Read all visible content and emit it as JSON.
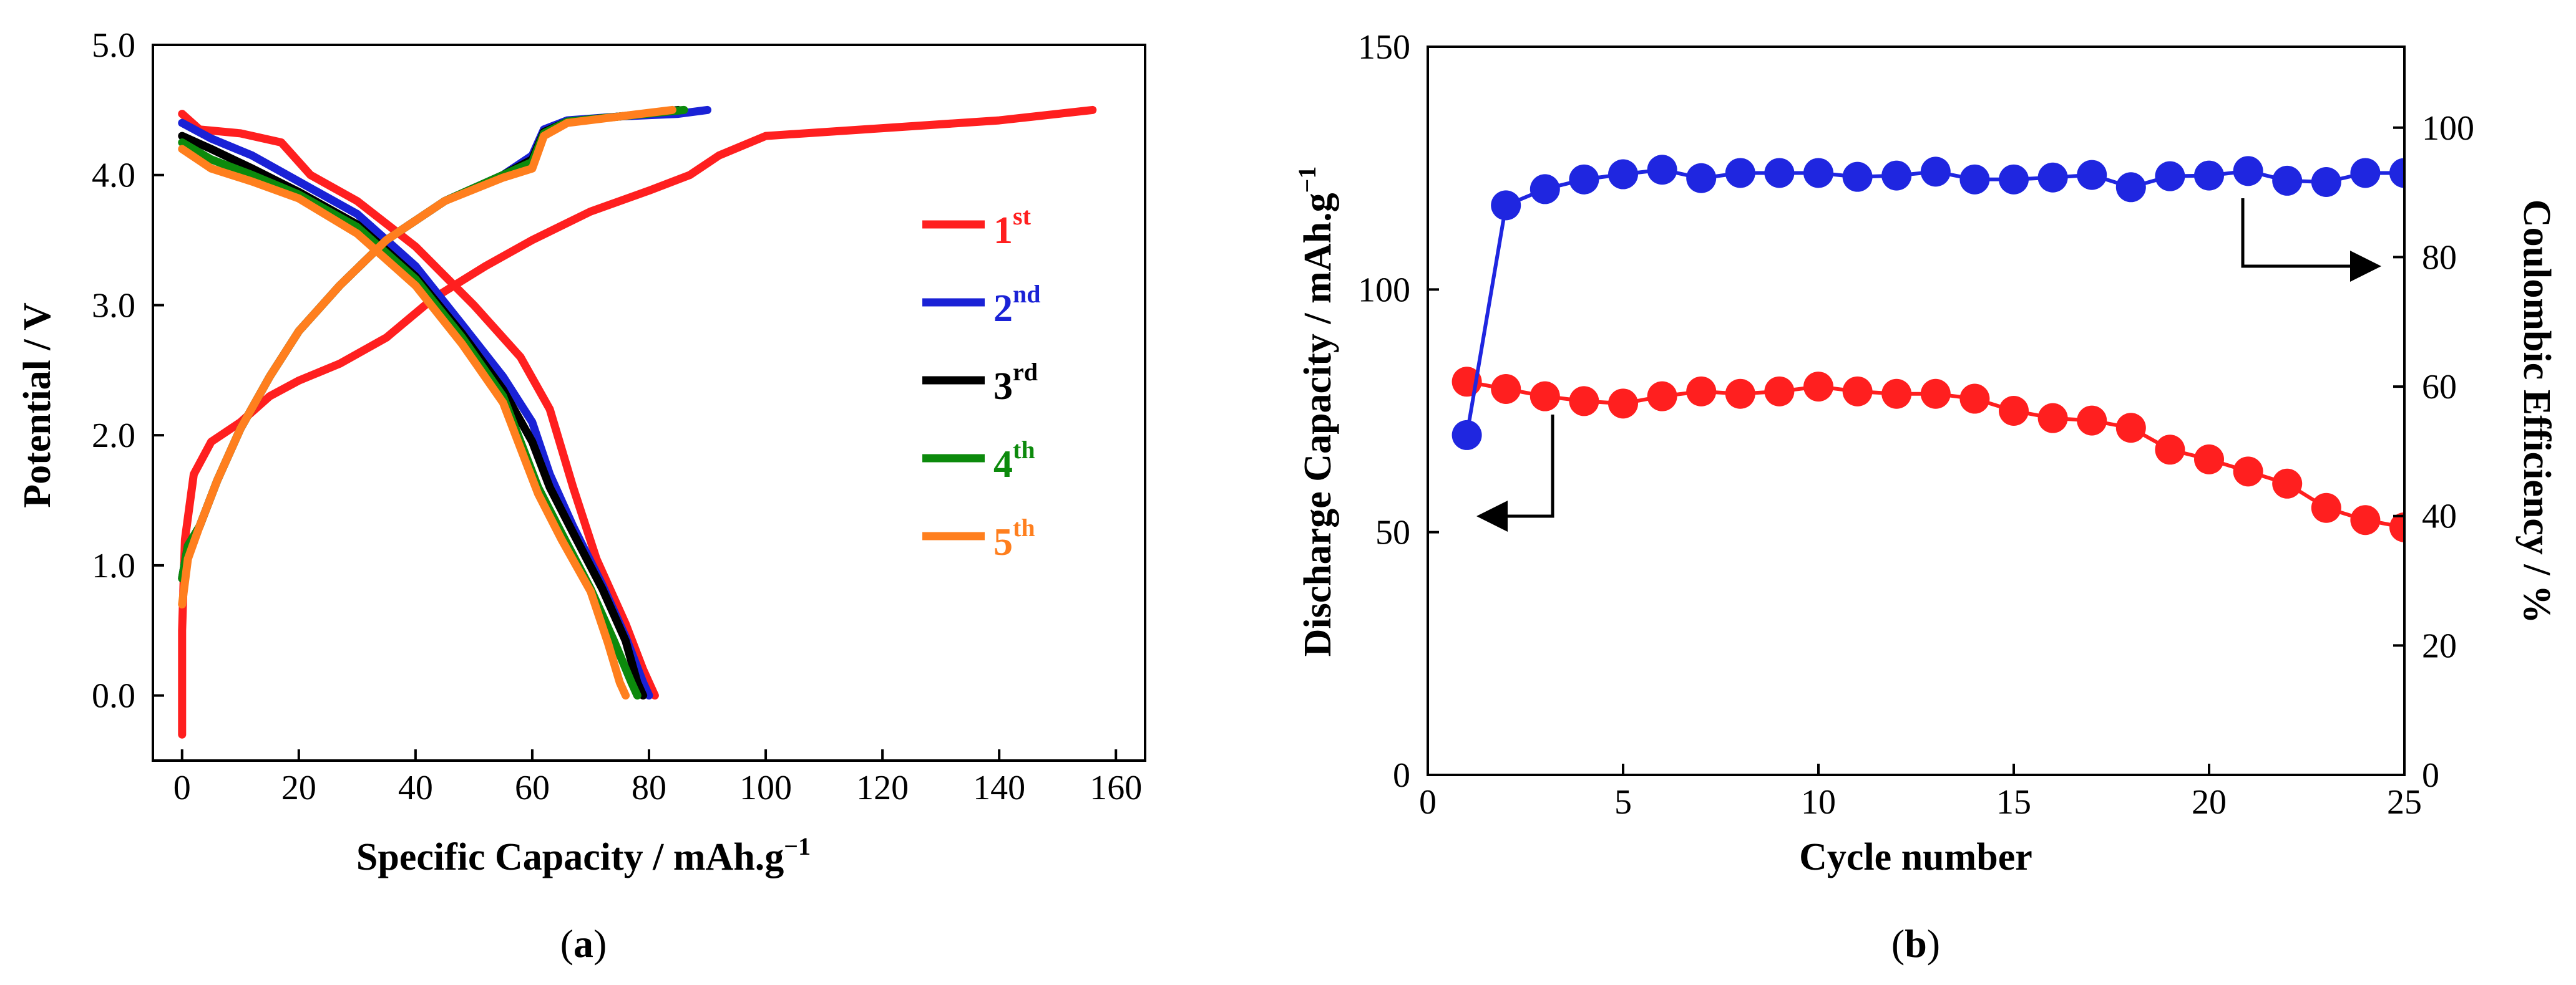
{
  "chart_data": [
    {
      "panel": "a",
      "type": "line",
      "caption": {
        "open": "(",
        "letter": "a",
        "close": ")"
      },
      "xlabel": {
        "main": "Specific Capacity / mAh.g",
        "sup": "−1"
      },
      "ylabel": "Potential / V",
      "xlim": [
        -5,
        165
      ],
      "ylim": [
        -0.5,
        5.0
      ],
      "xticks": [
        "0",
        "20",
        "40",
        "60",
        "80",
        "100",
        "120",
        "140",
        "160"
      ],
      "yticks": [
        "0.0",
        "1.0",
        "2.0",
        "3.0",
        "4.0",
        "5.0"
      ],
      "legend_position": "right",
      "series": [
        {
          "name": "1",
          "sup": "st",
          "color": "#ff1f1f",
          "charge": [
            [
              0,
              -0.3
            ],
            [
              0,
              0.5
            ],
            [
              0.5,
              1.2
            ],
            [
              2,
              1.7
            ],
            [
              5,
              1.95
            ],
            [
              10,
              2.1
            ],
            [
              15,
              2.3
            ],
            [
              20,
              2.42
            ],
            [
              27,
              2.55
            ],
            [
              35,
              2.75
            ],
            [
              43,
              3.05
            ],
            [
              52,
              3.3
            ],
            [
              60,
              3.5
            ],
            [
              70,
              3.72
            ],
            [
              80,
              3.88
            ],
            [
              87,
              4.0
            ],
            [
              92,
              4.15
            ],
            [
              100,
              4.3
            ],
            [
              120,
              4.36
            ],
            [
              140,
              4.42
            ],
            [
              156,
              4.5
            ]
          ],
          "discharge": [
            [
              0,
              4.47
            ],
            [
              3,
              4.35
            ],
            [
              10,
              4.32
            ],
            [
              17,
              4.25
            ],
            [
              22,
              4.0
            ],
            [
              30,
              3.8
            ],
            [
              40,
              3.45
            ],
            [
              50,
              3.0
            ],
            [
              58,
              2.6
            ],
            [
              63,
              2.2
            ],
            [
              67,
              1.6
            ],
            [
              71,
              1.05
            ],
            [
              76,
              0.55
            ],
            [
              79,
              0.2
            ],
            [
              81,
              0.0
            ]
          ]
        },
        {
          "name": "2",
          "sup": "nd",
          "color": "#1a22d6",
          "charge": [
            [
              0,
              0.9
            ],
            [
              1,
              1.15
            ],
            [
              3,
              1.3
            ],
            [
              6,
              1.65
            ],
            [
              10,
              2.05
            ],
            [
              15,
              2.45
            ],
            [
              20,
              2.8
            ],
            [
              27,
              3.15
            ],
            [
              35,
              3.5
            ],
            [
              45,
              3.8
            ],
            [
              55,
              4.0
            ],
            [
              60,
              4.15
            ],
            [
              62,
              4.35
            ],
            [
              66,
              4.42
            ],
            [
              75,
              4.45
            ],
            [
              85,
              4.47
            ],
            [
              90,
              4.5
            ]
          ],
          "discharge": [
            [
              0,
              4.4
            ],
            [
              5,
              4.28
            ],
            [
              12,
              4.15
            ],
            [
              20,
              3.95
            ],
            [
              30,
              3.7
            ],
            [
              40,
              3.3
            ],
            [
              48,
              2.85
            ],
            [
              55,
              2.45
            ],
            [
              60,
              2.1
            ],
            [
              63,
              1.7
            ],
            [
              67,
              1.3
            ],
            [
              72,
              0.85
            ],
            [
              76,
              0.45
            ],
            [
              79,
              0.1
            ],
            [
              80,
              0.0
            ]
          ]
        },
        {
          "name": "3",
          "sup": "rd",
          "color": "#000000",
          "charge": [
            [
              0,
              0.9
            ],
            [
              1,
              1.15
            ],
            [
              3,
              1.3
            ],
            [
              6,
              1.65
            ],
            [
              10,
              2.05
            ],
            [
              15,
              2.45
            ],
            [
              20,
              2.8
            ],
            [
              27,
              3.15
            ],
            [
              35,
              3.5
            ],
            [
              45,
              3.8
            ],
            [
              55,
              4.0
            ],
            [
              60,
              4.12
            ],
            [
              62,
              4.33
            ],
            [
              66,
              4.41
            ],
            [
              75,
              4.45
            ],
            [
              85,
              4.5
            ]
          ],
          "discharge": [
            [
              0,
              4.3
            ],
            [
              5,
              4.2
            ],
            [
              12,
              4.05
            ],
            [
              20,
              3.87
            ],
            [
              30,
              3.62
            ],
            [
              40,
              3.22
            ],
            [
              48,
              2.78
            ],
            [
              55,
              2.35
            ],
            [
              60,
              1.95
            ],
            [
              63,
              1.6
            ],
            [
              67,
              1.25
            ],
            [
              72,
              0.82
            ],
            [
              76,
              0.42
            ],
            [
              78,
              0.1
            ],
            [
              79,
              0.0
            ]
          ]
        },
        {
          "name": "4",
          "sup": "th",
          "color": "#0c8a0c",
          "charge": [
            [
              0,
              0.9
            ],
            [
              1,
              1.15
            ],
            [
              3,
              1.3
            ],
            [
              6,
              1.65
            ],
            [
              10,
              2.05
            ],
            [
              15,
              2.45
            ],
            [
              20,
              2.8
            ],
            [
              27,
              3.15
            ],
            [
              35,
              3.5
            ],
            [
              45,
              3.8
            ],
            [
              55,
              4.0
            ],
            [
              60,
              4.1
            ],
            [
              62,
              4.32
            ],
            [
              66,
              4.41
            ],
            [
              75,
              4.45
            ],
            [
              86,
              4.5
            ]
          ],
          "discharge": [
            [
              0,
              4.25
            ],
            [
              5,
              4.12
            ],
            [
              12,
              4.0
            ],
            [
              20,
              3.85
            ],
            [
              30,
              3.6
            ],
            [
              40,
              3.2
            ],
            [
              48,
              2.75
            ],
            [
              55,
              2.3
            ],
            [
              58,
              1.95
            ],
            [
              61,
              1.6
            ],
            [
              65,
              1.25
            ],
            [
              70,
              0.82
            ],
            [
              74,
              0.42
            ],
            [
              77,
              0.1
            ],
            [
              78,
              0.0
            ]
          ]
        },
        {
          "name": "5",
          "sup": "th",
          "color": "#ff7f1e",
          "charge": [
            [
              0,
              0.7
            ],
            [
              1,
              1.05
            ],
            [
              3,
              1.3
            ],
            [
              6,
              1.65
            ],
            [
              10,
              2.05
            ],
            [
              15,
              2.45
            ],
            [
              20,
              2.8
            ],
            [
              27,
              3.15
            ],
            [
              35,
              3.5
            ],
            [
              45,
              3.8
            ],
            [
              55,
              3.98
            ],
            [
              60,
              4.05
            ],
            [
              62,
              4.3
            ],
            [
              66,
              4.4
            ],
            [
              75,
              4.45
            ],
            [
              84,
              4.5
            ]
          ],
          "discharge": [
            [
              0,
              4.2
            ],
            [
              5,
              4.05
            ],
            [
              12,
              3.95
            ],
            [
              20,
              3.82
            ],
            [
              30,
              3.55
            ],
            [
              40,
              3.15
            ],
            [
              48,
              2.7
            ],
            [
              55,
              2.25
            ],
            [
              58,
              1.9
            ],
            [
              61,
              1.55
            ],
            [
              65,
              1.2
            ],
            [
              70,
              0.8
            ],
            [
              73,
              0.4
            ],
            [
              75,
              0.1
            ],
            [
              76,
              0.0
            ]
          ]
        }
      ]
    },
    {
      "panel": "b",
      "type": "scatter",
      "caption": {
        "open": "(",
        "letter": "b",
        "close": ")"
      },
      "xlabel": "Cycle number",
      "ylabel_left": {
        "main": "Discharge Capacity / mAh.g",
        "sup": "−1"
      },
      "ylabel_right": "Coulombic Efficiency / %",
      "xlim": [
        0,
        25
      ],
      "ylim_left": [
        0,
        150
      ],
      "ylim_right": [
        0,
        112.5
      ],
      "xticks": [
        "0",
        "5",
        "10",
        "15",
        "20",
        "25"
      ],
      "yticks_left": [
        "0",
        "50",
        "100",
        "150"
      ],
      "yticks_right": [
        "0",
        "20",
        "40",
        "60",
        "80",
        "100"
      ],
      "series": [
        {
          "name": "Discharge Capacity",
          "axis": "left",
          "color": "#ff1f1f",
          "x": [
            1,
            2,
            3,
            4,
            5,
            6,
            7,
            8,
            9,
            10,
            11,
            12,
            13,
            14,
            15,
            16,
            17,
            18,
            19,
            20,
            21,
            22,
            23,
            24,
            25
          ],
          "values": [
            81,
            79.5,
            78,
            77,
            76.5,
            78,
            79,
            78.5,
            79,
            80,
            79,
            78.5,
            78.5,
            77.5,
            75,
            73.5,
            73,
            71.5,
            67,
            65,
            62.5,
            60,
            55,
            52.5,
            51
          ]
        },
        {
          "name": "Coulombic Efficiency",
          "axis": "right",
          "color": "#1f26e0",
          "x": [
            1,
            2,
            3,
            4,
            5,
            6,
            7,
            8,
            9,
            10,
            11,
            12,
            13,
            14,
            15,
            16,
            17,
            18,
            19,
            20,
            21,
            22,
            23,
            24,
            25
          ],
          "values": [
            52.5,
            88,
            90.5,
            92,
            92.8,
            93.5,
            92.2,
            93,
            93,
            93,
            92.4,
            92.6,
            93.2,
            92,
            92,
            92.3,
            92.7,
            90.8,
            92.5,
            92.6,
            93.3,
            91.8,
            91.6,
            93,
            93
          ]
        }
      ],
      "annotations": [
        "arrow-left-to-capacity-axis",
        "arrow-right-to-efficiency-axis"
      ]
    }
  ]
}
